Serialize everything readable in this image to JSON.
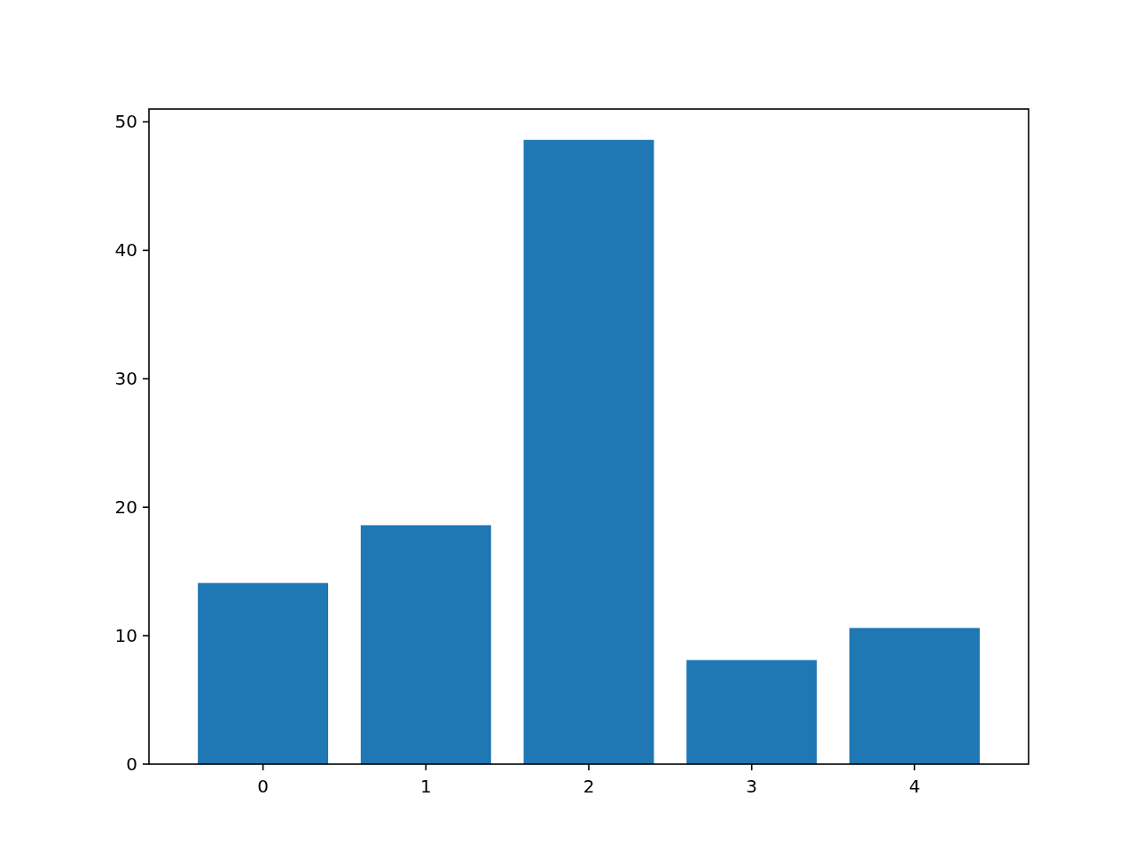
{
  "chart_data": {
    "type": "bar",
    "categories": [
      "0",
      "1",
      "2",
      "3",
      "4"
    ],
    "values": [
      14.1,
      18.6,
      48.6,
      8.1,
      10.6
    ],
    "color": "#1f77b4",
    "ylim": [
      0,
      51
    ],
    "yticks": [
      0,
      10,
      20,
      30,
      40,
      50
    ],
    "grid": false
  }
}
